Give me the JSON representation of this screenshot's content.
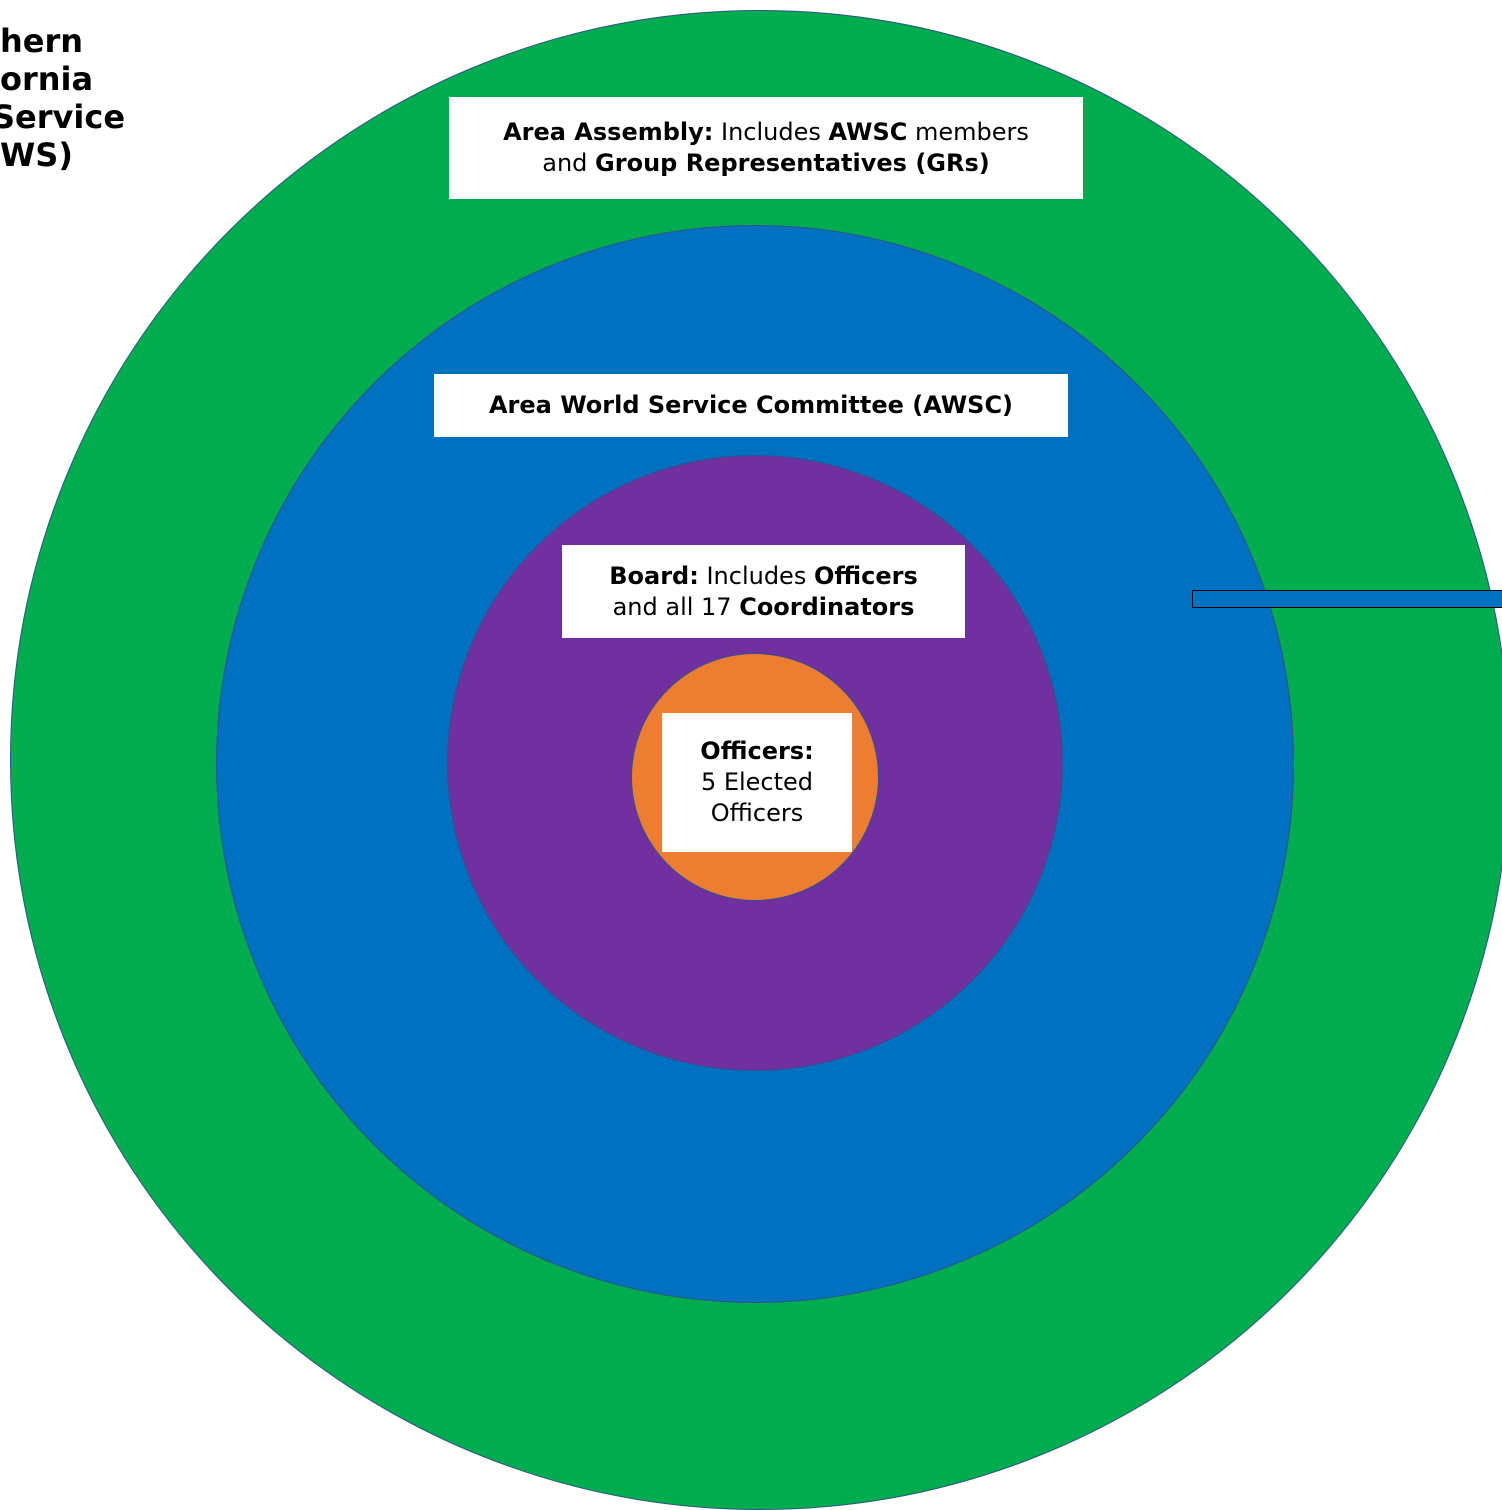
{
  "title_lines": [
    "hern",
    "ornia",
    "Service",
    "WS)"
  ],
  "colors": {
    "assembly": "#00ad4e",
    "awsc": "#0070c0",
    "board": "#7030a0",
    "officers": "#ed7d31",
    "ring_stroke": "#2f528f"
  },
  "area_assembly": {
    "label": "Area Assembly:",
    "text1": " Includes ",
    "bold1": "AWSC",
    "text2": " members",
    "text3": "and ",
    "bold2": "Group Representatives (GRs)"
  },
  "awsc": {
    "label": "Area World Service Committee (AWSC)"
  },
  "board": {
    "label": "Board:",
    "text1": " Includes ",
    "bold1": "Officers",
    "text2": "and all 17 ",
    "bold2": "Coordinators"
  },
  "officers": {
    "label": "Officers:",
    "line2": "5 Elected",
    "line3": "Officers"
  }
}
